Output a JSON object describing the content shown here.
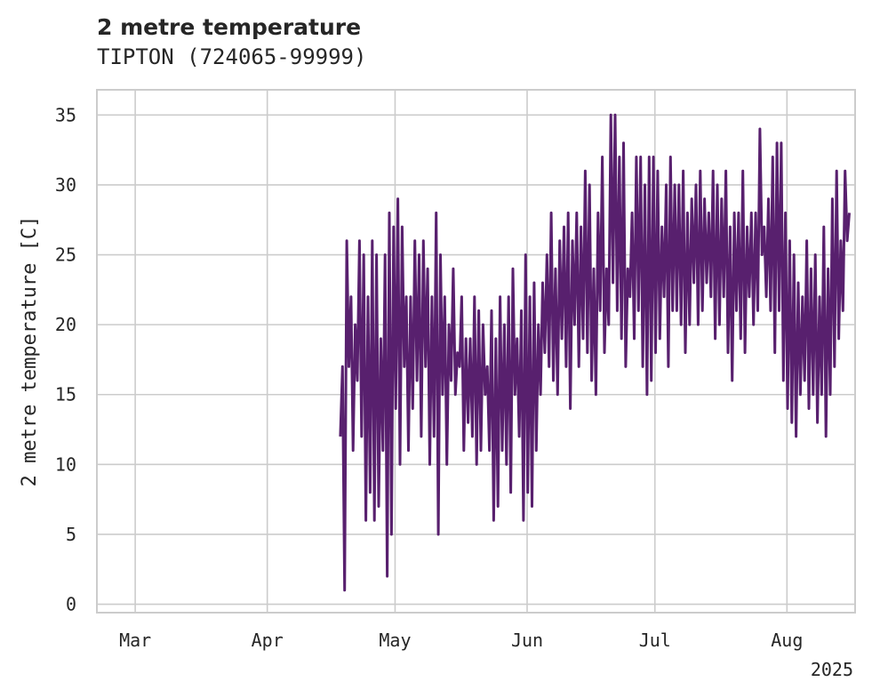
{
  "chart_data": {
    "type": "line",
    "title": "2 metre temperature",
    "subtitle": "TIPTON (724065-99999)",
    "xlabel": "",
    "ylabel": "2 metre temperature [C]",
    "x_tick_labels": [
      "Mar",
      "Apr",
      "May",
      "Jun",
      "Jul",
      "Aug"
    ],
    "x_tick_dates": [
      "2025-03-01",
      "2025-04-01",
      "2025-05-01",
      "2025-06-01",
      "2025-07-01",
      "2025-08-01"
    ],
    "x_offset_label": "2025",
    "xlim": [
      "2025-02-20",
      "2025-08-17"
    ],
    "y_ticks": [
      0,
      5,
      10,
      15,
      20,
      25,
      30,
      35
    ],
    "ylim": [
      -0.6,
      36.8
    ],
    "grid": true,
    "line_color": "#58206e",
    "series": [
      {
        "name": "",
        "x": [
          "2025-04-18",
          "2025-04-19",
          "2025-04-20",
          "2025-04-21",
          "2025-04-22",
          "2025-04-23",
          "2025-04-24",
          "2025-04-25",
          "2025-04-26",
          "2025-04-27",
          "2025-04-28",
          "2025-04-29",
          "2025-04-30",
          "2025-05-01",
          "2025-05-02",
          "2025-05-03",
          "2025-05-04",
          "2025-05-05",
          "2025-05-06",
          "2025-05-07",
          "2025-05-08",
          "2025-05-09",
          "2025-05-10",
          "2025-05-11",
          "2025-05-12",
          "2025-05-13",
          "2025-05-14",
          "2025-05-15",
          "2025-05-16",
          "2025-05-17",
          "2025-05-18",
          "2025-05-19",
          "2025-05-20",
          "2025-05-21",
          "2025-05-22",
          "2025-05-23",
          "2025-05-24",
          "2025-05-25",
          "2025-05-26",
          "2025-05-27",
          "2025-05-28",
          "2025-05-29",
          "2025-05-30",
          "2025-05-31",
          "2025-06-01",
          "2025-06-02",
          "2025-06-03",
          "2025-06-04",
          "2025-06-05",
          "2025-06-06",
          "2025-06-07",
          "2025-06-08",
          "2025-06-09",
          "2025-06-10",
          "2025-06-11",
          "2025-06-12",
          "2025-06-13",
          "2025-06-14",
          "2025-06-15",
          "2025-06-16",
          "2025-06-17",
          "2025-06-18",
          "2025-06-19",
          "2025-06-20",
          "2025-06-21",
          "2025-06-22",
          "2025-06-23",
          "2025-06-24",
          "2025-06-25",
          "2025-06-26",
          "2025-06-27",
          "2025-06-28",
          "2025-06-29",
          "2025-06-30",
          "2025-07-01",
          "2025-07-02",
          "2025-07-03",
          "2025-07-04",
          "2025-07-05",
          "2025-07-06",
          "2025-07-07",
          "2025-07-08",
          "2025-07-09",
          "2025-07-10",
          "2025-07-11",
          "2025-07-12",
          "2025-07-13",
          "2025-07-14",
          "2025-07-15",
          "2025-07-16",
          "2025-07-17",
          "2025-07-18",
          "2025-07-19",
          "2025-07-20",
          "2025-07-21",
          "2025-07-22",
          "2025-07-23",
          "2025-07-24",
          "2025-07-25",
          "2025-07-26",
          "2025-07-27",
          "2025-07-28",
          "2025-07-29",
          "2025-07-30",
          "2025-07-31",
          "2025-08-01",
          "2025-08-02",
          "2025-08-03",
          "2025-08-04",
          "2025-08-05",
          "2025-08-06",
          "2025-08-07",
          "2025-08-08",
          "2025-08-09",
          "2025-08-10",
          "2025-08-11",
          "2025-08-12",
          "2025-08-13",
          "2025-08-14",
          "2025-08-15"
        ],
        "max": [
          17,
          26,
          22,
          20,
          26,
          25,
          22,
          26,
          25,
          19,
          25,
          28,
          27,
          29,
          27,
          22,
          22,
          26,
          25,
          26,
          24,
          22,
          28,
          25,
          22,
          20,
          24,
          18,
          22,
          19,
          19,
          22,
          21,
          20,
          17,
          21,
          19,
          22,
          20,
          22,
          24,
          19,
          21,
          25,
          22,
          23,
          20,
          23,
          25,
          28,
          24,
          26,
          27,
          28,
          26,
          28,
          27,
          31,
          30,
          24,
          28,
          32,
          24,
          35,
          35,
          32,
          33,
          24,
          28,
          32,
          32,
          30,
          32,
          32,
          31,
          27,
          30,
          32,
          30,
          30,
          31,
          28,
          29,
          30,
          31,
          29,
          28,
          31,
          30,
          29,
          31,
          27,
          28,
          28,
          31,
          27,
          28,
          28,
          34,
          27,
          29,
          32,
          33,
          33,
          28,
          26,
          25,
          23,
          22,
          26,
          24,
          25,
          22,
          27,
          24,
          29,
          31,
          26,
          31,
          28
        ],
        "min": [
          12,
          1,
          17,
          11,
          16,
          12,
          6,
          8,
          6,
          7,
          11,
          2,
          5,
          14,
          10,
          17,
          11,
          14,
          16,
          12,
          17,
          10,
          12,
          5,
          15,
          10,
          16,
          15,
          17,
          11,
          13,
          12,
          10,
          11,
          15,
          11,
          6,
          7,
          11,
          10,
          8,
          15,
          12,
          6,
          8,
          7,
          11,
          15,
          18,
          17,
          16,
          15,
          19,
          17,
          14,
          20,
          17,
          19,
          18,
          16,
          15,
          21,
          18,
          20,
          23,
          21,
          19,
          17,
          22,
          19,
          21,
          17,
          15,
          16,
          18,
          19,
          22,
          17,
          21,
          21,
          20,
          18,
          20,
          23,
          20,
          21,
          23,
          22,
          19,
          20,
          22,
          18,
          16,
          21,
          19,
          18,
          22,
          20,
          21,
          25,
          22,
          21,
          18,
          21,
          16,
          14,
          13,
          12,
          15,
          16,
          14,
          15,
          13,
          15,
          12,
          15,
          17,
          19,
          21,
          26
        ]
      }
    ]
  }
}
